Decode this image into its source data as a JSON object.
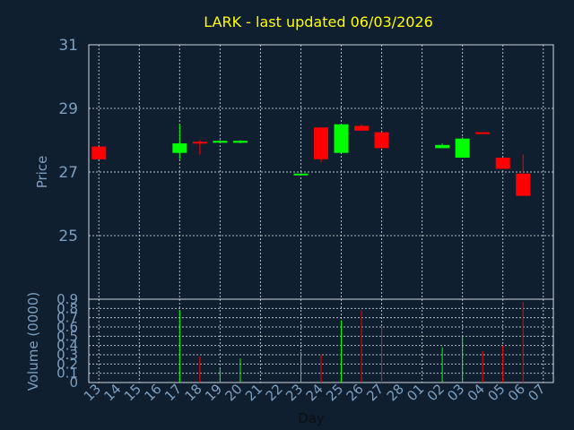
{
  "chart_data": {
    "type": "candlestick",
    "title": "LARK - last updated 06/03/2026",
    "xlabel": "Day",
    "price_panel": {
      "ylabel": "Price",
      "ylim": [
        23.0,
        31.0
      ],
      "yticks": [
        "25",
        "27",
        "29",
        "31"
      ],
      "grid": true
    },
    "volume_panel": {
      "ylabel": "Volume (0000)",
      "ylim": [
        0,
        0.9
      ],
      "yticks": [
        "0",
        "0.1",
        "0.2",
        "0.3",
        "0.4",
        "0.5",
        "0.6",
        "0.7",
        "0.8",
        "0.9"
      ],
      "grid": true
    },
    "x_ticks": [
      "13",
      "14",
      "15",
      "16",
      "17",
      "18",
      "19",
      "20",
      "21",
      "22",
      "23",
      "24",
      "25",
      "26",
      "27",
      "28",
      "01",
      "02",
      "03",
      "04",
      "05",
      "06",
      "07"
    ],
    "colors": {
      "up": "#00ff00",
      "down": "#ff0000",
      "background": "#0f1f2f",
      "title": "#ffff00",
      "axis_text": "#7f9fbf"
    },
    "candles": [
      {
        "day": "13",
        "open": 27.8,
        "high": 27.8,
        "low": 27.4,
        "close": 27.4
      },
      {
        "day": "17",
        "open": 27.6,
        "high": 28.5,
        "low": 27.4,
        "close": 27.9
      },
      {
        "day": "18",
        "open": 27.95,
        "high": 28.0,
        "low": 27.55,
        "close": 27.9
      },
      {
        "day": "19",
        "open": 27.92,
        "high": 28.0,
        "low": 27.9,
        "close": 27.98
      },
      {
        "day": "20",
        "open": 27.92,
        "high": 28.0,
        "low": 27.9,
        "close": 27.98
      },
      {
        "day": "23",
        "open": 26.9,
        "high": 26.95,
        "low": 26.9,
        "close": 26.95
      },
      {
        "day": "24",
        "open": 28.4,
        "high": 28.4,
        "low": 27.3,
        "close": 27.4
      },
      {
        "day": "25",
        "open": 27.6,
        "high": 28.5,
        "low": 27.6,
        "close": 28.5
      },
      {
        "day": "26",
        "open": 28.45,
        "high": 28.5,
        "low": 28.3,
        "close": 28.3
      },
      {
        "day": "27",
        "open": 28.25,
        "high": 28.25,
        "low": 27.75,
        "close": 27.75
      },
      {
        "day": "02",
        "open": 27.75,
        "high": 27.9,
        "low": 27.75,
        "close": 27.85
      },
      {
        "day": "03",
        "open": 27.45,
        "high": 28.1,
        "low": 27.45,
        "close": 28.05
      },
      {
        "day": "04",
        "open": 28.25,
        "high": 28.25,
        "low": 28.2,
        "close": 28.2
      },
      {
        "day": "05",
        "open": 27.45,
        "high": 27.45,
        "low": 27.1,
        "close": 27.1
      },
      {
        "day": "06",
        "open": 26.95,
        "high": 27.55,
        "low": 26.25,
        "close": 26.25
      }
    ],
    "volume": [
      {
        "day": "17",
        "value": 0.78,
        "dir": "up"
      },
      {
        "day": "18",
        "value": 0.28,
        "dir": "down"
      },
      {
        "day": "19",
        "value": 0.15,
        "dir": "up"
      },
      {
        "day": "20",
        "value": 0.26,
        "dir": "up"
      },
      {
        "day": "23",
        "value": 0.33,
        "dir": "up"
      },
      {
        "day": "24",
        "value": 0.3,
        "dir": "down"
      },
      {
        "day": "25",
        "value": 0.67,
        "dir": "up"
      },
      {
        "day": "26",
        "value": 0.78,
        "dir": "down"
      },
      {
        "day": "27",
        "value": 0.6,
        "dir": "down"
      },
      {
        "day": "02",
        "value": 0.38,
        "dir": "up"
      },
      {
        "day": "03",
        "value": 0.5,
        "dir": "up"
      },
      {
        "day": "04",
        "value": 0.34,
        "dir": "down"
      },
      {
        "day": "05",
        "value": 0.4,
        "dir": "down"
      },
      {
        "day": "06",
        "value": 0.87,
        "dir": "down"
      }
    ]
  }
}
